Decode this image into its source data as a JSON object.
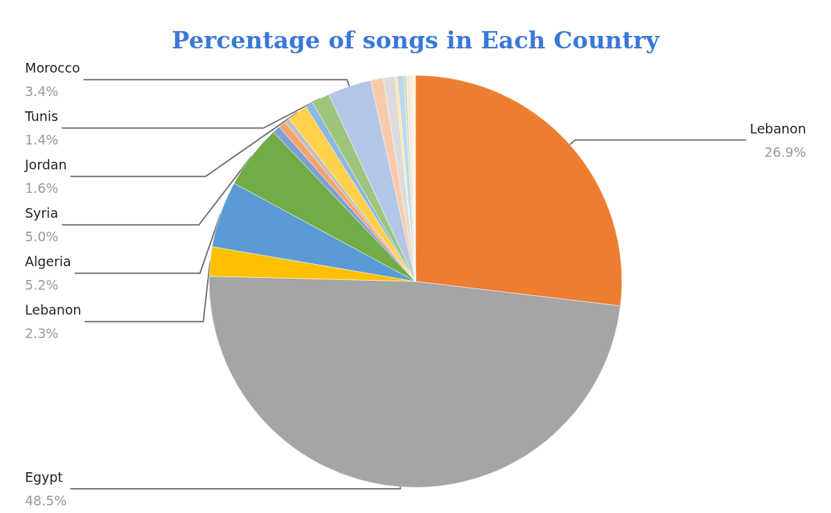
{
  "chart_data": {
    "type": "pie",
    "title": "Percentage of songs in Each Country",
    "categories": [
      "Lebanon",
      "Egypt",
      "Lebanon",
      "Algeria",
      "Syria",
      null,
      null,
      null,
      "Jordan",
      null,
      "Tunis",
      "Morocco",
      null,
      null,
      null,
      null,
      null,
      null,
      null,
      null
    ],
    "values": [
      26.9,
      48.5,
      2.3,
      5.2,
      5.0,
      0.6,
      0.6,
      0.4,
      1.6,
      0.6,
      1.4,
      3.4,
      1.0,
      0.9,
      0.2,
      0.5,
      0.2,
      0.3,
      0.2,
      0.2
    ],
    "value_labels": [
      "26.9%",
      "48.5%",
      "2.3%",
      "5.2%",
      "5.0%",
      null,
      null,
      null,
      "1.6%",
      null,
      "1.4%",
      "3.4%",
      null,
      null,
      null,
      null,
      null,
      null,
      null,
      null
    ],
    "colors": [
      "#ed7d31",
      "#a5a5a5",
      "#ffc000",
      "#5b9bd5",
      "#70ad47",
      "#7f9fd6",
      "#f4a46c",
      "#bfbfbf",
      "#ffd04c",
      "#8cb8e0",
      "#9dc57b",
      "#b4c6e7",
      "#f8cbad",
      "#dbdbdb",
      "#ffe699",
      "#bdd7ee",
      "#c5e0b4",
      "#fbe5d6",
      "#ededed",
      "#fff2cc"
    ],
    "legend": false
  }
}
